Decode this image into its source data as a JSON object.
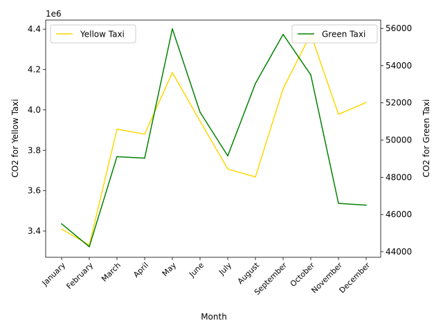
{
  "chart_data": {
    "type": "line",
    "xlabel": "Month",
    "ylabel_left": "CO2 for Yellow Taxi",
    "ylabel_right": "CO2 for Green Taxi",
    "left_offset_label": "1e6",
    "categories": [
      "January",
      "February",
      "March",
      "April",
      "May",
      "June",
      "July",
      "August",
      "September",
      "October",
      "November",
      "December"
    ],
    "left_axis": {
      "ylim": [
        3.27,
        4.445
      ],
      "ticks": [
        3.4,
        3.6,
        3.8,
        4.0,
        4.2,
        4.4
      ],
      "tick_labels": [
        "3.4",
        "3.6",
        "3.8",
        "4.0",
        "4.2",
        "4.4"
      ]
    },
    "right_axis": {
      "ylim": [
        43700,
        56450
      ],
      "ticks": [
        44000,
        46000,
        48000,
        50000,
        52000,
        54000,
        56000
      ],
      "tick_labels": [
        "44000",
        "46000",
        "48000",
        "50000",
        "52000",
        "54000",
        "56000"
      ]
    },
    "series": [
      {
        "name": "Yellow Taxi",
        "axis": "left",
        "color": "#ffd700",
        "values": [
          3.41,
          3.33,
          3.905,
          3.88,
          4.185,
          3.945,
          3.707,
          3.668,
          4.105,
          4.375,
          3.978,
          4.037
        ]
      },
      {
        "name": "Green Taxi",
        "axis": "right",
        "color": "#008000",
        "values": [
          45500,
          44270,
          49110,
          49030,
          55980,
          51500,
          49150,
          53040,
          55680,
          53500,
          46600,
          46500
        ]
      }
    ],
    "legends": [
      {
        "series": "Yellow Taxi",
        "position": "top-left"
      },
      {
        "series": "Green Taxi",
        "position": "top-right"
      }
    ],
    "grid": false
  }
}
